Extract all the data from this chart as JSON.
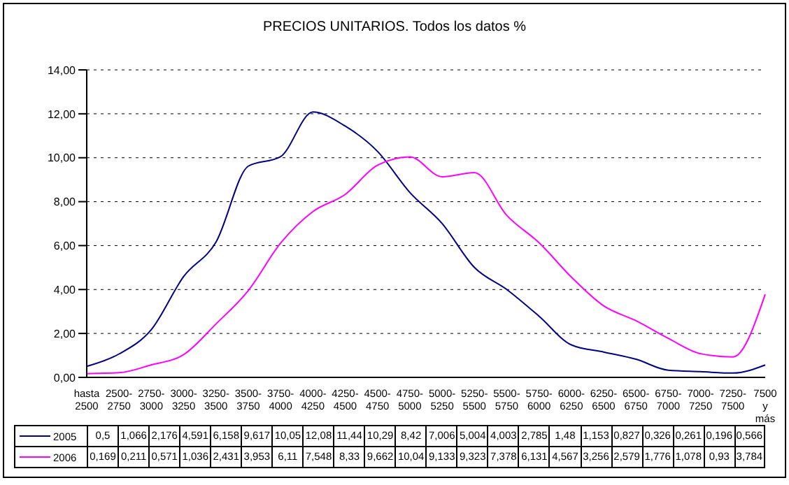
{
  "chart_data": {
    "type": "line",
    "title": "PRECIOS UNITARIOS. Todos los datos %",
    "categories": [
      "hasta 2500",
      "2500-2750",
      "2750-3000",
      "3000-3250",
      "3250-3500",
      "3500-3750",
      "3750-4000",
      "4000-4250",
      "4250-4500",
      "4500-4750",
      "4750-5000",
      "5000-5250",
      "5250-5500",
      "5500-5750",
      "5750-6000",
      "6000-6250",
      "6250-6500",
      "6500-6750",
      "6750-7000",
      "7000-7250",
      "7250-7500",
      "7500 y más"
    ],
    "series": [
      {
        "name": "2005",
        "color": "#000080",
        "values": [
          0.5,
          1.066,
          2.176,
          4.591,
          6.158,
          9.617,
          10.05,
          12.08,
          11.44,
          10.29,
          8.42,
          7.006,
          5.004,
          4.003,
          2.785,
          1.48,
          1.153,
          0.827,
          0.326,
          0.261,
          0.196,
          0.566
        ],
        "value_labels": [
          "0,5",
          "1,066",
          "2,176",
          "4,591",
          "6,158",
          "9,617",
          "10,05",
          "12,08",
          "11,44",
          "10,29",
          "8,42",
          "7,006",
          "5,004",
          "4,003",
          "2,785",
          "1,48",
          "1,153",
          "0,827",
          "0,326",
          "0,261",
          "0,196",
          "0,566"
        ]
      },
      {
        "name": "2006",
        "color": "#ff00ff",
        "values": [
          0.169,
          0.211,
          0.571,
          1.036,
          2.431,
          3.953,
          6.11,
          7.548,
          8.33,
          9.662,
          10.04,
          9.133,
          9.323,
          7.378,
          6.131,
          4.567,
          3.256,
          2.579,
          1.776,
          1.078,
          0.93,
          3.784
        ],
        "value_labels": [
          "0,169",
          "0,211",
          "0,571",
          "1,036",
          "2,431",
          "3,953",
          "6,11",
          "7,548",
          "8,33",
          "9,662",
          "10,04",
          "9,133",
          "9,323",
          "7,378",
          "6,131",
          "4,567",
          "3,256",
          "2,579",
          "1,776",
          "1,078",
          "0,93",
          "3,784"
        ]
      }
    ],
    "ylim": [
      0,
      14
    ],
    "yticks": [
      {
        "value": 0,
        "label": "0,00"
      },
      {
        "value": 2,
        "label": "2,00"
      },
      {
        "value": 4,
        "label": "4,00"
      },
      {
        "value": 6,
        "label": "6,00"
      },
      {
        "value": 8,
        "label": "8,00"
      },
      {
        "value": 10,
        "label": "10,00"
      },
      {
        "value": 12,
        "label": "12,00"
      },
      {
        "value": 14,
        "label": "14,00"
      }
    ],
    "grid": "y",
    "legend": "bottom",
    "marker": "none",
    "line_style": "solid"
  }
}
